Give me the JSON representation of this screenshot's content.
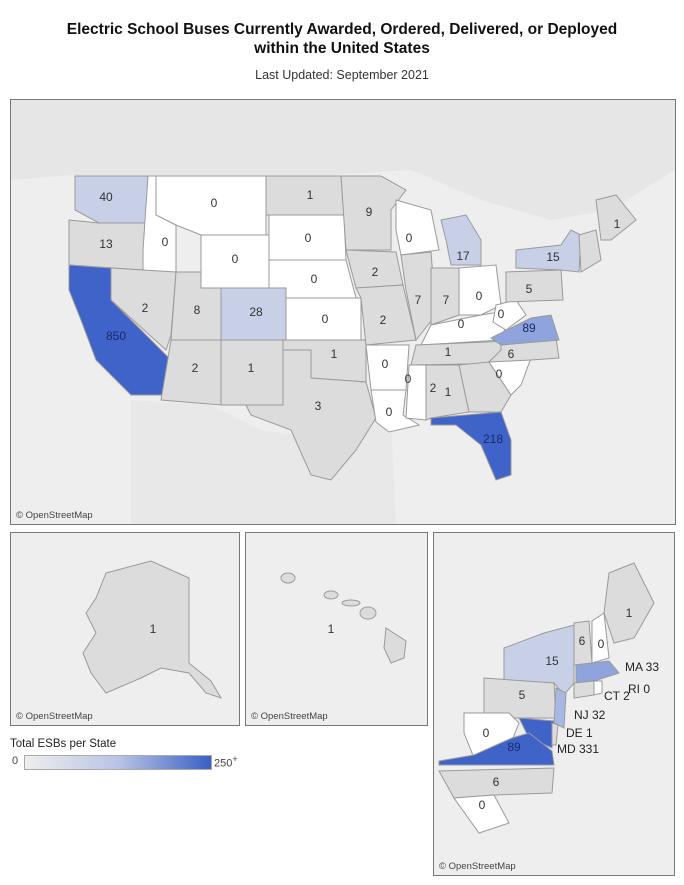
{
  "header": {
    "title_line1": "Electric School Buses Currently Awarded, Ordered, Delivered, or Deployed",
    "title_line2": "within the United States",
    "subtitle": "Last Updated: September 2021"
  },
  "credit": "© OpenStreetMap",
  "legend": {
    "title": "Total ESBs per State",
    "min_label": "0",
    "max_label": "250",
    "max_suffix": "+",
    "colors": {
      "low": "#eeeeee",
      "mid": "#b9c4e6",
      "high": "#3a60c6"
    }
  },
  "main_map": {
    "states": {
      "WA": "40",
      "OR": "13",
      "CA": "850",
      "ID": "0",
      "NV": "2",
      "UT": "8",
      "AZ": "2",
      "MT": "0",
      "WY": "0",
      "CO": "28",
      "NM": "1",
      "ND": "1",
      "SD": "0",
      "NE": "0",
      "KS": "0",
      "OK": "1",
      "TX": "3",
      "MN": "9",
      "IA": "2",
      "MO": "2",
      "AR": "0",
      "LA": "0",
      "WI": "0",
      "IL": "7",
      "MI": "17",
      "IN": "7",
      "OH": "0",
      "KY": "0",
      "TN": "1",
      "MS": "0",
      "AL": "1",
      "GA": "2",
      "FL": "218",
      "SC": "0",
      "NC": "6",
      "VA": "89",
      "WV": "0",
      "PA": "5",
      "NY": "15",
      "ME": "1"
    }
  },
  "alaska": {
    "value": "1"
  },
  "hawaii": {
    "value": "1"
  },
  "northeast": {
    "ME": "1",
    "NY": "15",
    "VT": "6",
    "NH": "0",
    "PA": "5",
    "WV": "0",
    "VA": "89",
    "NC": "6",
    "SC": "0",
    "MA": "MA 33",
    "RI": "RI 0",
    "CT": "CT 2",
    "NJ": "NJ 32",
    "DE": "DE 1",
    "MD": "MD 331"
  }
}
